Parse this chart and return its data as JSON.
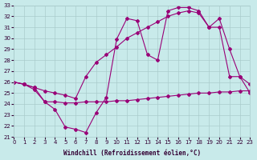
{
  "xlabel": "Windchill (Refroidissement éolien,°C)",
  "xlim": [
    0,
    23
  ],
  "ylim": [
    21,
    33
  ],
  "background_color": "#c8eaea",
  "line_color": "#990077",
  "grid_color": "#aacccc",
  "hours": [
    0,
    1,
    2,
    3,
    4,
    5,
    6,
    7,
    8,
    9,
    10,
    11,
    12,
    13,
    14,
    15,
    16,
    17,
    18,
    19,
    20,
    21,
    22,
    23
  ],
  "line_spiky": [
    26.0,
    25.8,
    25.3,
    24.2,
    23.5,
    21.9,
    21.7,
    21.4,
    23.2,
    24.6,
    29.9,
    31.8,
    31.6,
    28.5,
    28.0,
    32.5,
    32.8,
    32.8,
    32.5,
    31.0,
    31.8,
    29.0,
    26.5,
    25.0
  ],
  "line_mid": [
    26.0,
    25.8,
    25.5,
    25.2,
    25.0,
    24.8,
    24.5,
    26.5,
    27.8,
    28.5,
    29.2,
    30.0,
    30.5,
    31.0,
    31.5,
    32.0,
    32.3,
    32.5,
    32.3,
    31.0,
    31.0,
    26.5,
    26.5,
    25.8
  ],
  "line_flat": [
    26.0,
    25.8,
    25.5,
    24.2,
    24.2,
    24.1,
    24.1,
    24.2,
    24.2,
    24.2,
    24.3,
    24.3,
    24.4,
    24.5,
    24.6,
    24.7,
    24.8,
    24.9,
    25.0,
    25.0,
    25.1,
    25.1,
    25.2,
    25.2
  ]
}
